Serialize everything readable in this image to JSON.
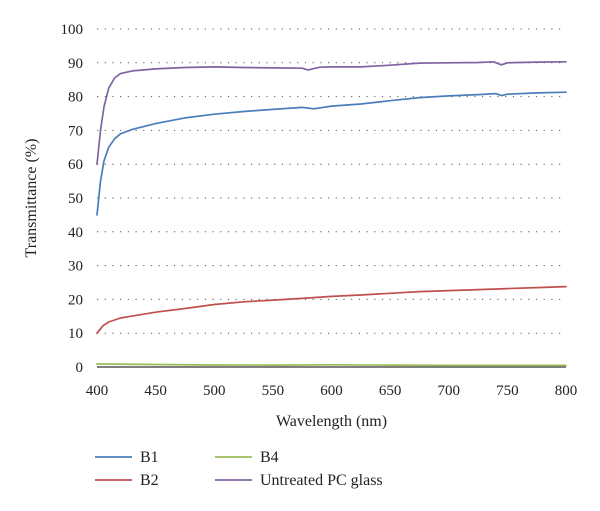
{
  "chart_data": {
    "type": "line",
    "title": "",
    "xlabel": "Wavelength (nm)",
    "ylabel": "Transmittance (%)",
    "xlim": [
      400,
      800
    ],
    "ylim": [
      0,
      100
    ],
    "x_ticks": [
      400,
      450,
      500,
      550,
      600,
      650,
      700,
      750,
      800
    ],
    "y_ticks": [
      0,
      10,
      20,
      30,
      40,
      50,
      60,
      70,
      80,
      90,
      100
    ],
    "grid": "dotted horizontal",
    "legend": "bottom, two columns",
    "series": [
      {
        "name": "B1",
        "color": "#4a7ebb",
        "points": [
          [
            400,
            45
          ],
          [
            403,
            55
          ],
          [
            406,
            61
          ],
          [
            410,
            65
          ],
          [
            415,
            67.5
          ],
          [
            420,
            69
          ],
          [
            430,
            70.3
          ],
          [
            450,
            72
          ],
          [
            475,
            73.7
          ],
          [
            500,
            74.8
          ],
          [
            525,
            75.6
          ],
          [
            550,
            76.2
          ],
          [
            575,
            76.8
          ],
          [
            585,
            76.4
          ],
          [
            600,
            77.2
          ],
          [
            625,
            77.8
          ],
          [
            650,
            78.8
          ],
          [
            675,
            79.7
          ],
          [
            700,
            80.2
          ],
          [
            725,
            80.6
          ],
          [
            740,
            80.9
          ],
          [
            745,
            80.3
          ],
          [
            750,
            80.7
          ],
          [
            775,
            81.1
          ],
          [
            800,
            81.3
          ]
        ]
      },
      {
        "name": "B2",
        "color": "#c0504d",
        "points": [
          [
            400,
            10
          ],
          [
            405,
            12.2
          ],
          [
            410,
            13.3
          ],
          [
            420,
            14.5
          ],
          [
            450,
            16.2
          ],
          [
            475,
            17.3
          ],
          [
            500,
            18.5
          ],
          [
            525,
            19.3
          ],
          [
            550,
            19.8
          ],
          [
            575,
            20.3
          ],
          [
            600,
            20.9
          ],
          [
            625,
            21.3
          ],
          [
            650,
            21.8
          ],
          [
            675,
            22.3
          ],
          [
            700,
            22.6
          ],
          [
            725,
            22.9
          ],
          [
            750,
            23.2
          ],
          [
            775,
            23.5
          ],
          [
            800,
            23.8
          ]
        ]
      },
      {
        "name": "B4",
        "color": "#9bbb59",
        "points": [
          [
            400,
            0.9
          ],
          [
            450,
            0.75
          ],
          [
            500,
            0.6
          ],
          [
            550,
            0.55
          ],
          [
            600,
            0.65
          ],
          [
            650,
            0.55
          ],
          [
            700,
            0.5
          ],
          [
            750,
            0.5
          ],
          [
            800,
            0.5
          ]
        ]
      },
      {
        "name": "Untreated PC glass",
        "color": "#8064a2",
        "points": [
          [
            400,
            60
          ],
          [
            403,
            70
          ],
          [
            406,
            77
          ],
          [
            410,
            82.5
          ],
          [
            415,
            85.5
          ],
          [
            420,
            86.8
          ],
          [
            430,
            87.6
          ],
          [
            450,
            88.2
          ],
          [
            475,
            88.6
          ],
          [
            500,
            88.8
          ],
          [
            525,
            88.6
          ],
          [
            550,
            88.5
          ],
          [
            575,
            88.4
          ],
          [
            580,
            87.9
          ],
          [
            590,
            88.7
          ],
          [
            600,
            88.8
          ],
          [
            625,
            88.8
          ],
          [
            650,
            89.3
          ],
          [
            675,
            89.9
          ],
          [
            700,
            90.0
          ],
          [
            725,
            90.1
          ],
          [
            738,
            90.3
          ],
          [
            745,
            89.4
          ],
          [
            750,
            90.0
          ],
          [
            775,
            90.2
          ],
          [
            800,
            90.3
          ]
        ]
      }
    ]
  }
}
